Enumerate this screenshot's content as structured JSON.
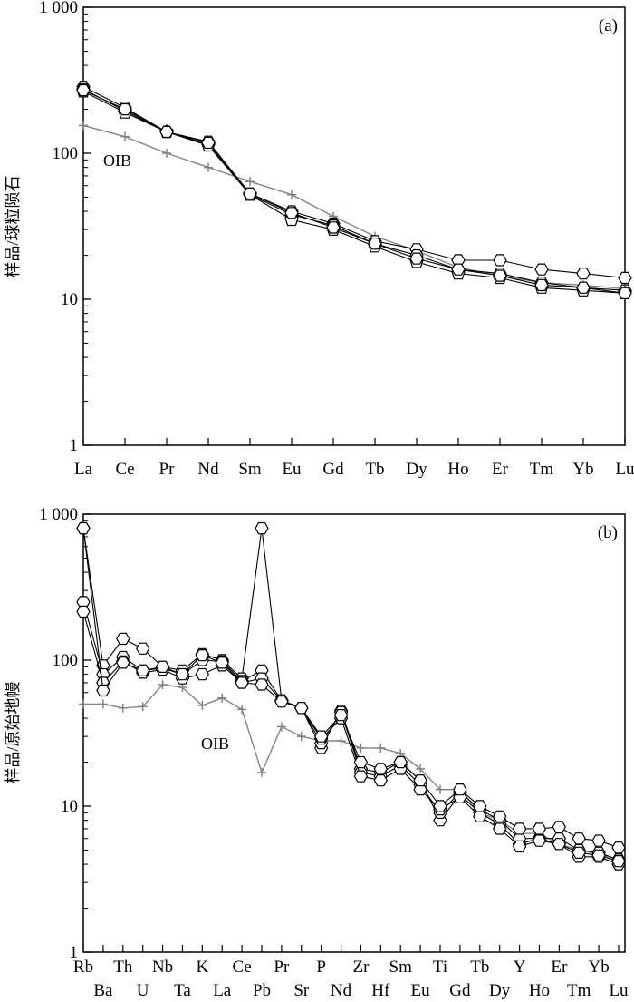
{
  "chart_data": [
    {
      "type": "line",
      "panel_label": "(a)",
      "ylabel": "样品/球粒陨石",
      "log_scale": true,
      "ylim": [
        1,
        1000
      ],
      "y_ticks": [
        {
          "value": 1,
          "label": "1"
        },
        {
          "value": 10,
          "label": "10"
        },
        {
          "value": 100,
          "label": "100"
        },
        {
          "value": 1000,
          "label": "1 000"
        }
      ],
      "categories": [
        "La",
        "Ce",
        "Pr",
        "Nd",
        "Sm",
        "Eu",
        "Gd",
        "Tb",
        "Dy",
        "Ho",
        "Er",
        "Tm",
        "Yb",
        "Lu"
      ],
      "annotation": "OIB",
      "series": [
        {
          "marker": "hexagon",
          "color": "#000000",
          "values": [
            285,
            205,
            140,
            120,
            53,
            40,
            33,
            25,
            22,
            18.5,
            18.5,
            16,
            15,
            14
          ]
        },
        {
          "marker": "hexagon",
          "color": "#000000",
          "values": [
            275,
            195,
            140,
            115,
            52,
            38,
            32,
            24,
            20,
            16,
            15,
            13,
            12,
            11.5
          ]
        },
        {
          "marker": "pentagon",
          "color": "#000000",
          "values": [
            265,
            190,
            140,
            113,
            52,
            35,
            30,
            23,
            18,
            15,
            14,
            12,
            11.5,
            11
          ]
        },
        {
          "marker": "hexagon",
          "color": "#000000",
          "values": [
            270,
            200,
            140,
            118,
            53,
            39,
            31,
            24,
            19,
            16,
            14.5,
            12.5,
            12,
            11
          ]
        },
        {
          "marker": "plus",
          "color": "#8a8080",
          "name": "OIB",
          "values": [
            155,
            130,
            100,
            80,
            64,
            52,
            37,
            27,
            21.5,
            16.5,
            14.5,
            13,
            12.5,
            11.8
          ]
        }
      ]
    },
    {
      "type": "line",
      "panel_label": "(b)",
      "ylabel": "样品/原始地幔",
      "log_scale": true,
      "ylim": [
        1,
        1000
      ],
      "y_ticks": [
        {
          "value": 1,
          "label": "1"
        },
        {
          "value": 10,
          "label": "10"
        },
        {
          "value": 100,
          "label": "100"
        },
        {
          "value": 1000,
          "label": "1 000"
        }
      ],
      "categories": [
        "Rb",
        "Ba",
        "Th",
        "U",
        "Nb",
        "Ta",
        "K",
        "La",
        "Ce",
        "Pb",
        "Pr",
        "Sr",
        "P",
        "Nd",
        "Zr",
        "Hf",
        "Sm",
        "Eu",
        "Ti",
        "Gd",
        "Tb",
        "Dy",
        "Y",
        "Ho",
        "Er",
        "Tm",
        "Yb",
        "Lu"
      ],
      "annotation": "OIB",
      "series": [
        {
          "marker": "hexagon",
          "color": "#000000",
          "values": [
            800,
            92,
            140,
            120,
            90,
            85,
            110,
            100,
            75,
            800,
            53,
            47,
            25,
            45,
            18,
            17,
            20,
            15,
            8,
            12,
            9,
            7.5,
            5.5,
            6,
            5.5,
            4.5,
            4.5,
            4.0
          ]
        },
        {
          "marker": "hexagon",
          "color": "#000000",
          "values": [
            250,
            80,
            105,
            85,
            88,
            80,
            100,
            98,
            72,
            85,
            53,
            47,
            27,
            44,
            17,
            16,
            19,
            14,
            9,
            12.5,
            9.5,
            8,
            6,
            6,
            6,
            5,
            4.8,
            4.3
          ]
        },
        {
          "marker": "hexagon",
          "color": "#000000",
          "values": [
            215,
            70,
            98,
            82,
            86,
            75,
            80,
            92,
            70,
            75,
            53,
            47,
            29,
            40,
            16,
            15,
            18,
            13,
            9.5,
            11.5,
            8.5,
            7,
            5.3,
            5.8,
            5.5,
            4.8,
            4.6,
            4.2
          ]
        },
        {
          "marker": "hexagon",
          "color": "#000000",
          "values": [
            800,
            62,
            96,
            85,
            90,
            80,
            108,
            96,
            70,
            68,
            52,
            47,
            30,
            42,
            20,
            18,
            20,
            15,
            10,
            13,
            10,
            8.5,
            7,
            7,
            7.2,
            6,
            5.8,
            5.2
          ]
        },
        {
          "marker": "plus",
          "color": "#8a8080",
          "name": "OIB",
          "values": [
            50,
            50,
            47,
            48,
            68,
            65,
            49,
            55,
            46,
            17,
            35,
            30,
            28,
            28,
            25,
            25,
            23,
            18,
            13,
            13,
            9,
            8,
            6.5,
            6.5,
            5.5,
            5,
            4.7,
            4.3
          ]
        }
      ]
    }
  ]
}
